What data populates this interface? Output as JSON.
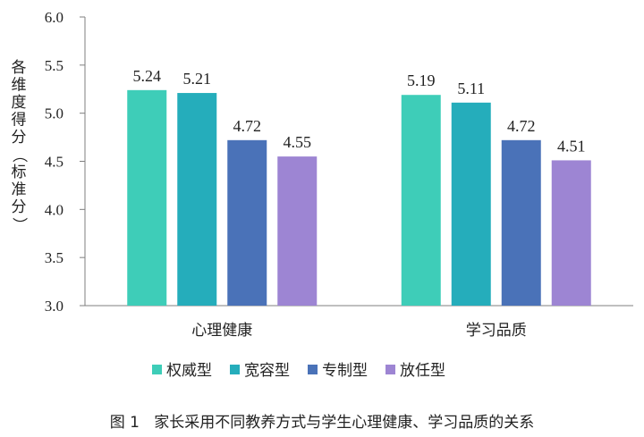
{
  "chart_data": {
    "type": "bar",
    "categories": [
      "心理健康",
      "学习品质"
    ],
    "series": [
      {
        "name": "权威型",
        "values": [
          5.24,
          5.19
        ],
        "color": "#3ecdb8"
      },
      {
        "name": "宽容型",
        "values": [
          5.21,
          5.11
        ],
        "color": "#25adbb"
      },
      {
        "name": "专制型",
        "values": [
          4.72,
          4.72
        ],
        "color": "#4a72b8"
      },
      {
        "name": "放任型",
        "values": [
          4.55,
          4.51
        ],
        "color": "#9d85d3"
      }
    ],
    "data_labels": [
      [
        "5.24",
        "5.19"
      ],
      [
        "5.21",
        "5.11"
      ],
      [
        "4.72",
        "4.72"
      ],
      [
        "4.55",
        "4.51"
      ]
    ],
    "title": "",
    "xlabel": "",
    "ylabel": "各维度得分（标准分）",
    "ylim": [
      3.0,
      6.0
    ],
    "yticks": [
      "3.0",
      "3.5",
      "4.0",
      "4.5",
      "5.0",
      "5.5",
      "6.0"
    ],
    "grid": false,
    "legend_position": "bottom",
    "axis_color": "#7f7f7f"
  },
  "caption": "图 1   家长采用不同教养方式与学生心理健康、学习品质的关系"
}
